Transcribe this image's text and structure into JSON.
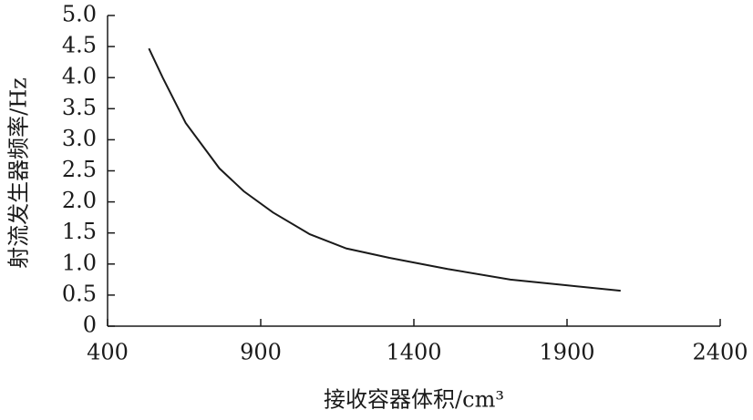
{
  "chart_data": {
    "type": "line",
    "xlabel": "接收容器体积/cm³",
    "ylabel": "射流发生器频率/Hz",
    "x": [
      535,
      580,
      655,
      765,
      845,
      940,
      1060,
      1180,
      1320,
      1510,
      1715,
      1895,
      2075
    ],
    "series": [
      {
        "color": "#1a1a1a",
        "values": [
          4.47,
          4.0,
          3.27,
          2.54,
          2.17,
          1.83,
          1.48,
          1.25,
          1.1,
          0.92,
          0.75,
          0.66,
          0.57
        ]
      }
    ],
    "xlim": [
      400,
      2400
    ],
    "xticks": [
      400,
      900,
      1400,
      1900,
      2400
    ],
    "ylim": [
      0,
      5
    ],
    "yticks": [
      0,
      0.5,
      {
        "value": 1,
        "label": "1.0"
      },
      1.5,
      {
        "value": 2,
        "label": "2.0"
      },
      2.5,
      {
        "value": 3,
        "label": "3.0"
      },
      3.5,
      {
        "value": 4,
        "label": "4.0"
      },
      4.5,
      {
        "value": 5,
        "label": "5.0"
      }
    ]
  }
}
